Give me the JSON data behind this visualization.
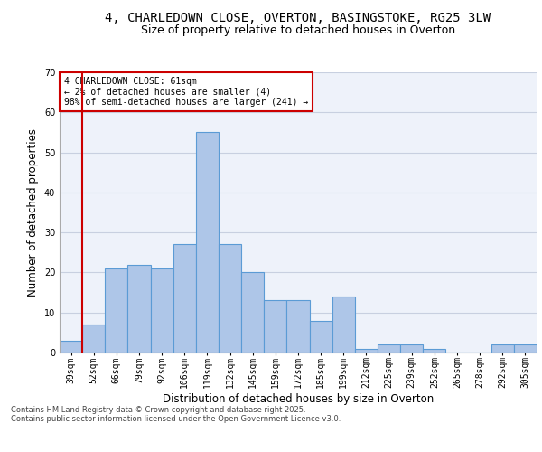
{
  "title_line1": "4, CHARLEDOWN CLOSE, OVERTON, BASINGSTOKE, RG25 3LW",
  "title_line2": "Size of property relative to detached houses in Overton",
  "xlabel": "Distribution of detached houses by size in Overton",
  "ylabel": "Number of detached properties",
  "categories": [
    "39sqm",
    "52sqm",
    "66sqm",
    "79sqm",
    "92sqm",
    "106sqm",
    "119sqm",
    "132sqm",
    "145sqm",
    "159sqm",
    "172sqm",
    "185sqm",
    "199sqm",
    "212sqm",
    "225sqm",
    "239sqm",
    "252sqm",
    "265sqm",
    "278sqm",
    "292sqm",
    "305sqm"
  ],
  "values": [
    3,
    7,
    21,
    22,
    21,
    27,
    55,
    27,
    20,
    13,
    13,
    8,
    14,
    1,
    2,
    2,
    1,
    0,
    0,
    2,
    2
  ],
  "bar_color": "#aec6e8",
  "bar_edgecolor": "#5b9bd5",
  "vline_x": 0.5,
  "vline_color": "#cc0000",
  "annotation_text": "4 CHARLEDOWN CLOSE: 61sqm\n← 2% of detached houses are smaller (4)\n98% of semi-detached houses are larger (241) →",
  "annotation_box_edgecolor": "#cc0000",
  "ylim": [
    0,
    70
  ],
  "yticks": [
    0,
    10,
    20,
    30,
    40,
    50,
    60,
    70
  ],
  "footnote_line1": "Contains HM Land Registry data © Crown copyright and database right 2025.",
  "footnote_line2": "Contains public sector information licensed under the Open Government Licence v3.0.",
  "background_color": "#eef2fa",
  "grid_color": "#c8d0e0",
  "title_fontsize": 10,
  "subtitle_fontsize": 9,
  "axis_label_fontsize": 8.5,
  "tick_fontsize": 7,
  "annotation_fontsize": 7,
  "footnote_fontsize": 6
}
